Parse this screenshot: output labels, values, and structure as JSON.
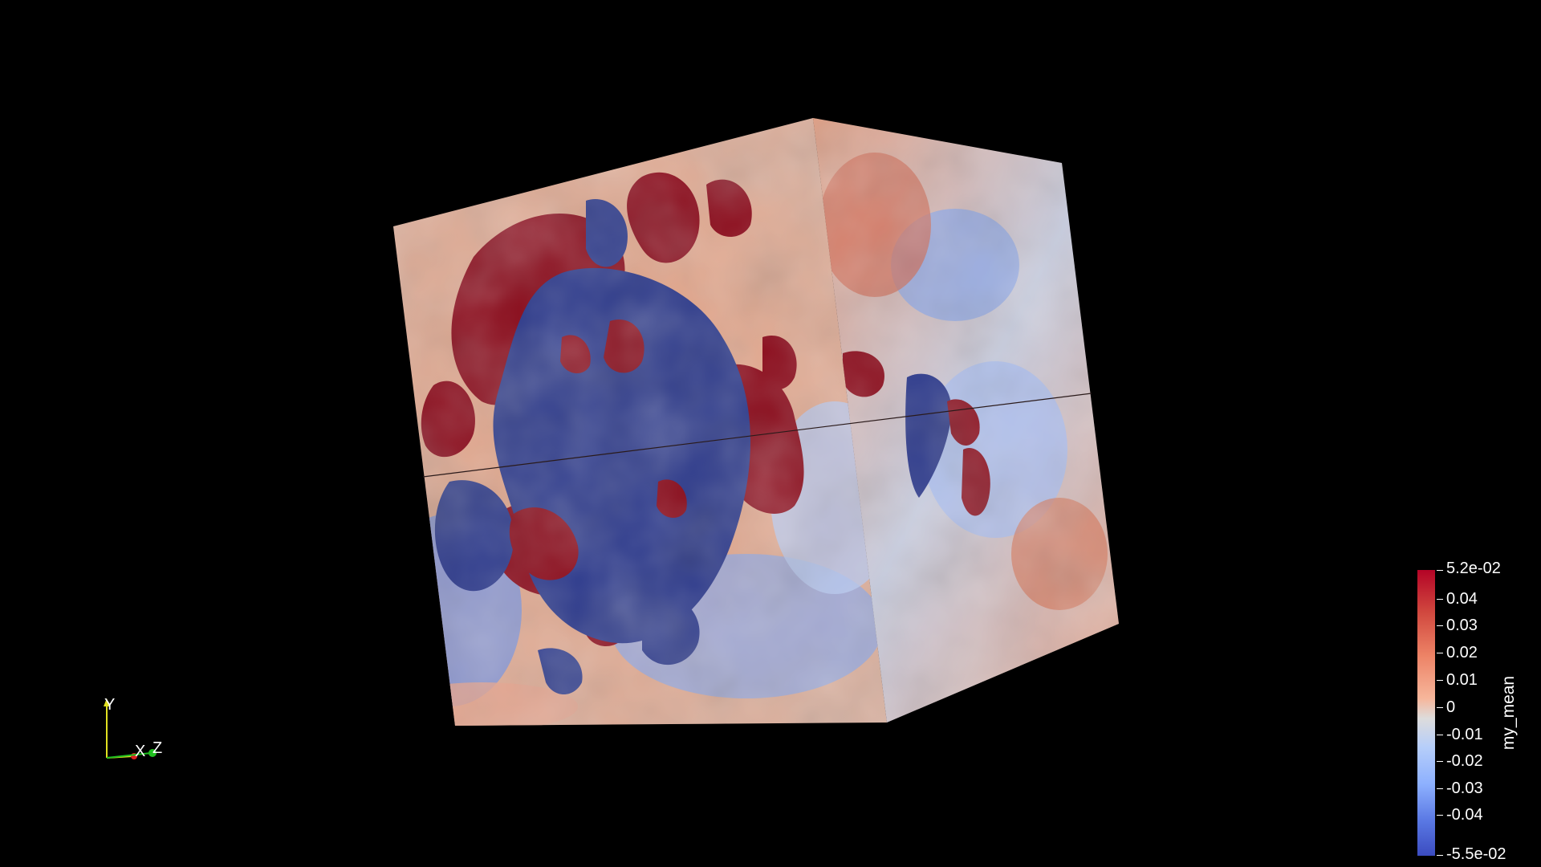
{
  "orientation_axes": {
    "y_label": "Y",
    "x_label": "X",
    "z_label": "Z",
    "colors": {
      "x": "#e02020",
      "y": "#e0e020",
      "z": "#20c020"
    }
  },
  "colorbar": {
    "title": "my_mean",
    "range": [
      -0.055,
      0.052
    ],
    "colormap": "cool-to-warm",
    "ticks": [
      "5.2e-02",
      "0.04",
      "0.03",
      "0.02",
      "0.01",
      "0",
      "-0.01",
      "-0.02",
      "-0.03",
      "-0.04",
      "-5.5e-02"
    ],
    "colors": {
      "high": "#b40426",
      "mid": "#dddcdc",
      "low": "#3b4cc0"
    }
  },
  "volume": {
    "field": "my_mean",
    "background": "#000000"
  }
}
